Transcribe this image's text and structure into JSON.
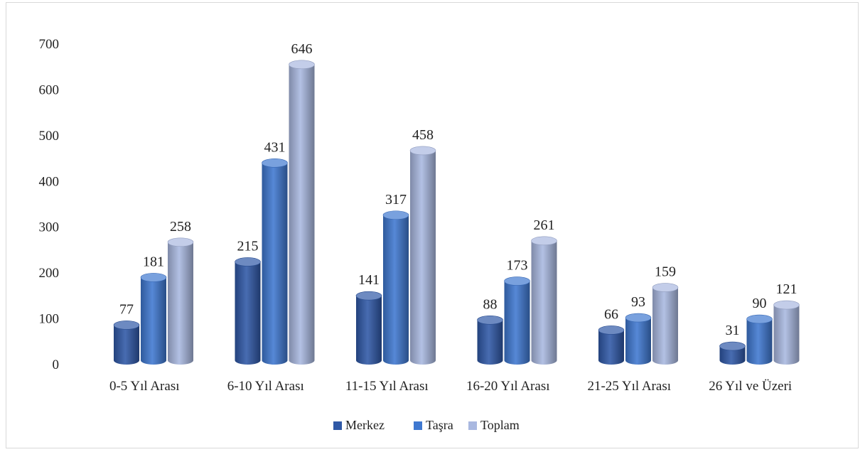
{
  "chart_data": {
    "type": "bar",
    "categories": [
      "0-5 Yıl Arası",
      "6-10 Yıl Arası",
      "11-15 Yıl Arası",
      "16-20 Yıl Arası",
      "21-25 Yıl Arası",
      "26 Yıl ve Üzeri"
    ],
    "series": [
      {
        "name": "Merkez",
        "color": "#2f58a6",
        "values": [
          77,
          215,
          141,
          88,
          66,
          31
        ]
      },
      {
        "name": "Taşra",
        "color": "#3f78d0",
        "values": [
          181,
          431,
          317,
          173,
          93,
          90
        ]
      },
      {
        "name": "Toplam",
        "color": "#a9b8e0",
        "values": [
          258,
          646,
          458,
          261,
          159,
          121
        ]
      }
    ],
    "yticks": [
      "0",
      "100",
      "200",
      "300",
      "400",
      "500",
      "600",
      "700"
    ],
    "ylim": [
      0,
      700
    ],
    "legend_position": "bottom",
    "grid": false,
    "style": "3d-cylinder"
  }
}
